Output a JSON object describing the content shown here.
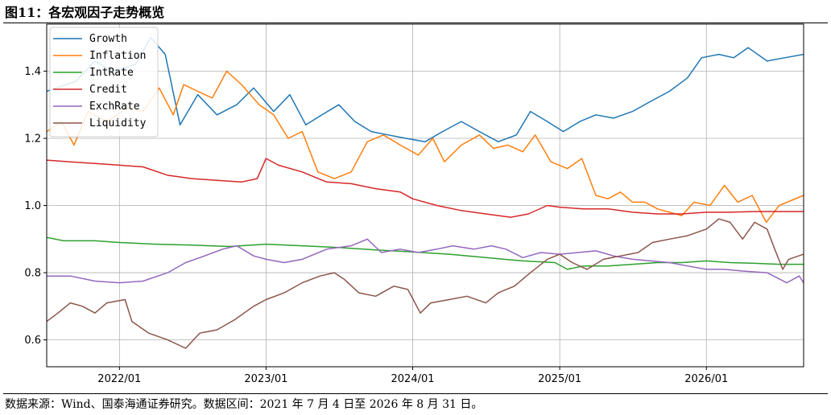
{
  "figure": {
    "title": "图11：各宏观因子走势概览",
    "source": "数据来源：Wind、国泰海通证券研究。数据区间：2021 年 7 月 4 日至 2026 年 8 月 31 日。"
  },
  "chart_data": {
    "type": "line",
    "xlim": [
      "2021-07-04",
      "2026-08-31"
    ],
    "ylim": [
      0.52,
      1.54
    ],
    "x_ticks": [
      "2022/01",
      "2023/01",
      "2024/01",
      "2025/01",
      "2026/01"
    ],
    "y_ticks": [
      0.6,
      0.8,
      1.0,
      1.2,
      1.4
    ],
    "grid": true,
    "legend_position": "top-left",
    "series": [
      {
        "name": "Growth",
        "color": "#1f77b4",
        "points": [
          [
            "2021-07-04",
            1.34
          ],
          [
            "2021-09-15",
            1.37
          ],
          [
            "2021-11-01",
            1.43
          ],
          [
            "2021-12-15",
            1.4
          ],
          [
            "2022-02-10",
            1.42
          ],
          [
            "2022-03-20",
            1.5
          ],
          [
            "2022-04-25",
            1.45
          ],
          [
            "2022-06-01",
            1.24
          ],
          [
            "2022-07-15",
            1.33
          ],
          [
            "2022-09-01",
            1.27
          ],
          [
            "2022-10-20",
            1.3
          ],
          [
            "2022-12-01",
            1.35
          ],
          [
            "2023-01-20",
            1.28
          ],
          [
            "2023-03-01",
            1.33
          ],
          [
            "2023-04-10",
            1.24
          ],
          [
            "2023-05-20",
            1.27
          ],
          [
            "2023-07-01",
            1.3
          ],
          [
            "2023-08-10",
            1.25
          ],
          [
            "2023-09-20",
            1.22
          ],
          [
            "2023-11-01",
            1.21
          ],
          [
            "2023-12-15",
            1.2
          ],
          [
            "2024-02-01",
            1.19
          ],
          [
            "2024-03-15",
            1.22
          ],
          [
            "2024-05-01",
            1.25
          ],
          [
            "2024-06-15",
            1.22
          ],
          [
            "2024-08-01",
            1.19
          ],
          [
            "2024-09-15",
            1.21
          ],
          [
            "2024-10-20",
            1.28
          ],
          [
            "2024-12-01",
            1.25
          ],
          [
            "2025-01-10",
            1.22
          ],
          [
            "2025-02-20",
            1.25
          ],
          [
            "2025-04-01",
            1.27
          ],
          [
            "2025-05-15",
            1.26
          ],
          [
            "2025-07-01",
            1.28
          ],
          [
            "2025-08-15",
            1.31
          ],
          [
            "2025-10-01",
            1.34
          ],
          [
            "2025-11-15",
            1.38
          ],
          [
            "2025-12-20",
            1.44
          ],
          [
            "2026-02-01",
            1.45
          ],
          [
            "2026-03-10",
            1.44
          ],
          [
            "2026-04-15",
            1.47
          ],
          [
            "2026-06-01",
            1.43
          ],
          [
            "2026-07-15",
            1.44
          ],
          [
            "2026-08-31",
            1.45
          ]
        ]
      },
      {
        "name": "Inflation",
        "color": "#ff7f0e",
        "points": [
          [
            "2021-07-04",
            1.22
          ],
          [
            "2021-08-10",
            1.25
          ],
          [
            "2021-09-10",
            1.18
          ],
          [
            "2021-10-15",
            1.28
          ],
          [
            "2021-12-01",
            1.25
          ],
          [
            "2022-01-20",
            1.29
          ],
          [
            "2022-03-01",
            1.28
          ],
          [
            "2022-04-10",
            1.35
          ],
          [
            "2022-05-15",
            1.27
          ],
          [
            "2022-06-10",
            1.36
          ],
          [
            "2022-07-15",
            1.34
          ],
          [
            "2022-08-20",
            1.32
          ],
          [
            "2022-09-25",
            1.4
          ],
          [
            "2022-11-01",
            1.36
          ],
          [
            "2022-12-15",
            1.3
          ],
          [
            "2023-01-20",
            1.27
          ],
          [
            "2023-02-25",
            1.2
          ],
          [
            "2023-04-01",
            1.22
          ],
          [
            "2023-05-10",
            1.1
          ],
          [
            "2023-06-20",
            1.08
          ],
          [
            "2023-08-01",
            1.1
          ],
          [
            "2023-09-10",
            1.19
          ],
          [
            "2023-10-20",
            1.21
          ],
          [
            "2023-12-01",
            1.18
          ],
          [
            "2024-01-15",
            1.15
          ],
          [
            "2024-02-20",
            1.2
          ],
          [
            "2024-03-20",
            1.13
          ],
          [
            "2024-05-01",
            1.18
          ],
          [
            "2024-06-15",
            1.21
          ],
          [
            "2024-07-20",
            1.17
          ],
          [
            "2024-08-25",
            1.18
          ],
          [
            "2024-10-01",
            1.16
          ],
          [
            "2024-11-01",
            1.21
          ],
          [
            "2024-12-10",
            1.13
          ],
          [
            "2025-01-20",
            1.11
          ],
          [
            "2025-02-25",
            1.14
          ],
          [
            "2025-04-01",
            1.03
          ],
          [
            "2025-05-01",
            1.02
          ],
          [
            "2025-06-01",
            1.04
          ],
          [
            "2025-07-01",
            1.01
          ],
          [
            "2025-08-01",
            1.01
          ],
          [
            "2025-09-01",
            0.99
          ],
          [
            "2025-10-01",
            0.98
          ],
          [
            "2025-11-01",
            0.97
          ],
          [
            "2025-12-01",
            1.01
          ],
          [
            "2026-01-10",
            1.0
          ],
          [
            "2026-02-15",
            1.06
          ],
          [
            "2026-03-20",
            1.01
          ],
          [
            "2026-04-25",
            1.03
          ],
          [
            "2026-05-30",
            0.95
          ],
          [
            "2026-07-01",
            1.0
          ],
          [
            "2026-08-31",
            1.03
          ]
        ]
      },
      {
        "name": "IntRate",
        "color": "#2ca02c",
        "points": [
          [
            "2021-07-04",
            0.905
          ],
          [
            "2021-08-15",
            0.895
          ],
          [
            "2021-11-01",
            0.895
          ],
          [
            "2022-01-01",
            0.89
          ],
          [
            "2022-04-01",
            0.885
          ],
          [
            "2022-07-01",
            0.882
          ],
          [
            "2022-10-01",
            0.878
          ],
          [
            "2023-01-01",
            0.885
          ],
          [
            "2023-04-01",
            0.88
          ],
          [
            "2023-07-01",
            0.875
          ],
          [
            "2023-10-01",
            0.868
          ],
          [
            "2024-01-01",
            0.862
          ],
          [
            "2024-04-01",
            0.855
          ],
          [
            "2024-07-01",
            0.845
          ],
          [
            "2024-10-01",
            0.835
          ],
          [
            "2024-12-20",
            0.83
          ],
          [
            "2025-01-20",
            0.81
          ],
          [
            "2025-03-01",
            0.82
          ],
          [
            "2025-05-01",
            0.82
          ],
          [
            "2025-07-01",
            0.825
          ],
          [
            "2025-09-01",
            0.83
          ],
          [
            "2025-11-01",
            0.83
          ],
          [
            "2026-01-01",
            0.835
          ],
          [
            "2026-03-01",
            0.83
          ],
          [
            "2026-05-01",
            0.828
          ],
          [
            "2026-07-01",
            0.825
          ],
          [
            "2026-08-31",
            0.825
          ]
        ]
      },
      {
        "name": "Credit",
        "color": "#d62728",
        "points": [
          [
            "2021-07-04",
            1.135
          ],
          [
            "2021-09-01",
            1.13
          ],
          [
            "2021-11-01",
            1.125
          ],
          [
            "2022-01-01",
            1.12
          ],
          [
            "2022-03-01",
            1.115
          ],
          [
            "2022-05-01",
            1.09
          ],
          [
            "2022-07-01",
            1.08
          ],
          [
            "2022-09-01",
            1.075
          ],
          [
            "2022-11-01",
            1.07
          ],
          [
            "2022-12-10",
            1.08
          ],
          [
            "2023-01-01",
            1.14
          ],
          [
            "2023-02-01",
            1.12
          ],
          [
            "2023-04-01",
            1.1
          ],
          [
            "2023-06-01",
            1.07
          ],
          [
            "2023-08-01",
            1.065
          ],
          [
            "2023-10-01",
            1.05
          ],
          [
            "2023-12-01",
            1.04
          ],
          [
            "2024-01-01",
            1.02
          ],
          [
            "2024-03-01",
            1.0
          ],
          [
            "2024-05-01",
            0.985
          ],
          [
            "2024-07-01",
            0.975
          ],
          [
            "2024-09-01",
            0.965
          ],
          [
            "2024-10-15",
            0.975
          ],
          [
            "2024-12-01",
            1.0
          ],
          [
            "2025-01-01",
            0.995
          ],
          [
            "2025-03-01",
            0.99
          ],
          [
            "2025-05-01",
            0.99
          ],
          [
            "2025-07-01",
            0.98
          ],
          [
            "2025-09-01",
            0.975
          ],
          [
            "2025-11-01",
            0.975
          ],
          [
            "2026-01-01",
            0.98
          ],
          [
            "2026-03-01",
            0.98
          ],
          [
            "2026-05-01",
            0.982
          ],
          [
            "2026-08-31",
            0.982
          ]
        ]
      },
      {
        "name": "ExchRate",
        "color": "#9467bd",
        "points": [
          [
            "2021-07-04",
            0.79
          ],
          [
            "2021-09-01",
            0.79
          ],
          [
            "2021-11-01",
            0.775
          ],
          [
            "2022-01-01",
            0.77
          ],
          [
            "2022-03-01",
            0.775
          ],
          [
            "2022-05-01",
            0.8
          ],
          [
            "2022-06-15",
            0.83
          ],
          [
            "2022-08-01",
            0.85
          ],
          [
            "2022-09-15",
            0.87
          ],
          [
            "2022-10-20",
            0.88
          ],
          [
            "2022-12-01",
            0.85
          ],
          [
            "2023-01-01",
            0.84
          ],
          [
            "2023-02-15",
            0.83
          ],
          [
            "2023-04-01",
            0.84
          ],
          [
            "2023-06-01",
            0.87
          ],
          [
            "2023-08-01",
            0.88
          ],
          [
            "2023-09-10",
            0.9
          ],
          [
            "2023-10-15",
            0.86
          ],
          [
            "2023-12-01",
            0.87
          ],
          [
            "2024-01-15",
            0.86
          ],
          [
            "2024-03-01",
            0.87
          ],
          [
            "2024-04-10",
            0.88
          ],
          [
            "2024-06-01",
            0.87
          ],
          [
            "2024-07-15",
            0.88
          ],
          [
            "2024-08-20",
            0.87
          ],
          [
            "2024-10-01",
            0.845
          ],
          [
            "2024-11-15",
            0.86
          ],
          [
            "2025-01-01",
            0.855
          ],
          [
            "2025-02-15",
            0.86
          ],
          [
            "2025-04-01",
            0.865
          ],
          [
            "2025-05-15",
            0.85
          ],
          [
            "2025-07-01",
            0.84
          ],
          [
            "2025-08-15",
            0.835
          ],
          [
            "2025-10-01",
            0.83
          ],
          [
            "2025-11-15",
            0.82
          ],
          [
            "2026-01-01",
            0.81
          ],
          [
            "2026-02-15",
            0.81
          ],
          [
            "2026-04-01",
            0.805
          ],
          [
            "2026-06-01",
            0.8
          ],
          [
            "2026-07-20",
            0.77
          ],
          [
            "2026-08-20",
            0.79
          ],
          [
            "2026-08-31",
            0.77
          ]
        ]
      },
      {
        "name": "Liquidity",
        "color": "#8c564b",
        "points": [
          [
            "2021-07-04",
            0.655
          ],
          [
            "2021-08-01",
            0.68
          ],
          [
            "2021-09-01",
            0.71
          ],
          [
            "2021-10-01",
            0.7
          ],
          [
            "2021-11-01",
            0.68
          ],
          [
            "2021-12-01",
            0.71
          ],
          [
            "2022-01-15",
            0.72
          ],
          [
            "2022-02-01",
            0.655
          ],
          [
            "2022-03-15",
            0.62
          ],
          [
            "2022-05-01",
            0.6
          ],
          [
            "2022-06-15",
            0.575
          ],
          [
            "2022-07-20",
            0.62
          ],
          [
            "2022-09-01",
            0.63
          ],
          [
            "2022-10-15",
            0.66
          ],
          [
            "2022-12-01",
            0.7
          ],
          [
            "2023-01-01",
            0.72
          ],
          [
            "2023-02-15",
            0.74
          ],
          [
            "2023-04-01",
            0.77
          ],
          [
            "2023-05-15",
            0.79
          ],
          [
            "2023-06-20",
            0.8
          ],
          [
            "2023-07-15",
            0.78
          ],
          [
            "2023-08-20",
            0.74
          ],
          [
            "2023-10-01",
            0.73
          ],
          [
            "2023-11-15",
            0.76
          ],
          [
            "2023-12-20",
            0.75
          ],
          [
            "2024-01-20",
            0.68
          ],
          [
            "2024-02-15",
            0.71
          ],
          [
            "2024-04-01",
            0.72
          ],
          [
            "2024-05-15",
            0.73
          ],
          [
            "2024-07-01",
            0.71
          ],
          [
            "2024-08-01",
            0.74
          ],
          [
            "2024-09-10",
            0.76
          ],
          [
            "2024-10-20",
            0.8
          ],
          [
            "2024-12-01",
            0.84
          ],
          [
            "2025-01-01",
            0.855
          ],
          [
            "2025-02-01",
            0.83
          ],
          [
            "2025-03-10",
            0.81
          ],
          [
            "2025-04-20",
            0.84
          ],
          [
            "2025-06-01",
            0.85
          ],
          [
            "2025-07-15",
            0.86
          ],
          [
            "2025-08-20",
            0.89
          ],
          [
            "2025-10-01",
            0.9
          ],
          [
            "2025-11-15",
            0.91
          ],
          [
            "2026-01-01",
            0.93
          ],
          [
            "2026-02-01",
            0.96
          ],
          [
            "2026-03-01",
            0.95
          ],
          [
            "2026-04-01",
            0.9
          ],
          [
            "2026-05-01",
            0.95
          ],
          [
            "2026-06-01",
            0.93
          ],
          [
            "2026-06-20",
            0.87
          ],
          [
            "2026-07-10",
            0.81
          ],
          [
            "2026-07-25",
            0.84
          ],
          [
            "2026-08-31",
            0.855
          ]
        ]
      }
    ]
  }
}
